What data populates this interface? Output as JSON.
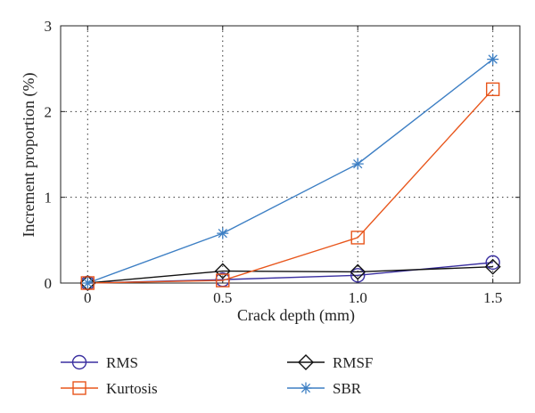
{
  "chart_data": {
    "type": "line",
    "title": "",
    "xlabel": "Crack depth (mm)",
    "ylabel": "Increment proportion (%)",
    "x": [
      0,
      0.5,
      1.0,
      1.5
    ],
    "xlim": [
      -0.1,
      1.6
    ],
    "ylim": [
      0,
      3
    ],
    "xticks": [
      0,
      0.5,
      1.0,
      1.5
    ],
    "xtick_labels": [
      "0",
      "0.5",
      "1.0",
      "1.5"
    ],
    "yticks": [
      0,
      1,
      2,
      3
    ],
    "ytick_labels": [
      "0",
      "1",
      "2",
      "3"
    ],
    "grid": true,
    "legend_position": "below",
    "series": [
      {
        "name": "RMS",
        "marker": "circle",
        "color": "#3a2fa0",
        "values": [
          0,
          0.04,
          0.09,
          0.24
        ]
      },
      {
        "name": "RMSF",
        "marker": "diamond",
        "color": "#111111",
        "values": [
          0,
          0.14,
          0.13,
          0.19
        ]
      },
      {
        "name": "Kurtosis",
        "marker": "square",
        "color": "#e8561c",
        "values": [
          0,
          0.03,
          0.53,
          2.26
        ]
      },
      {
        "name": "SBR",
        "marker": "asterisk",
        "color": "#3d7fc4",
        "values": [
          0,
          0.58,
          1.39,
          2.61
        ]
      }
    ]
  }
}
